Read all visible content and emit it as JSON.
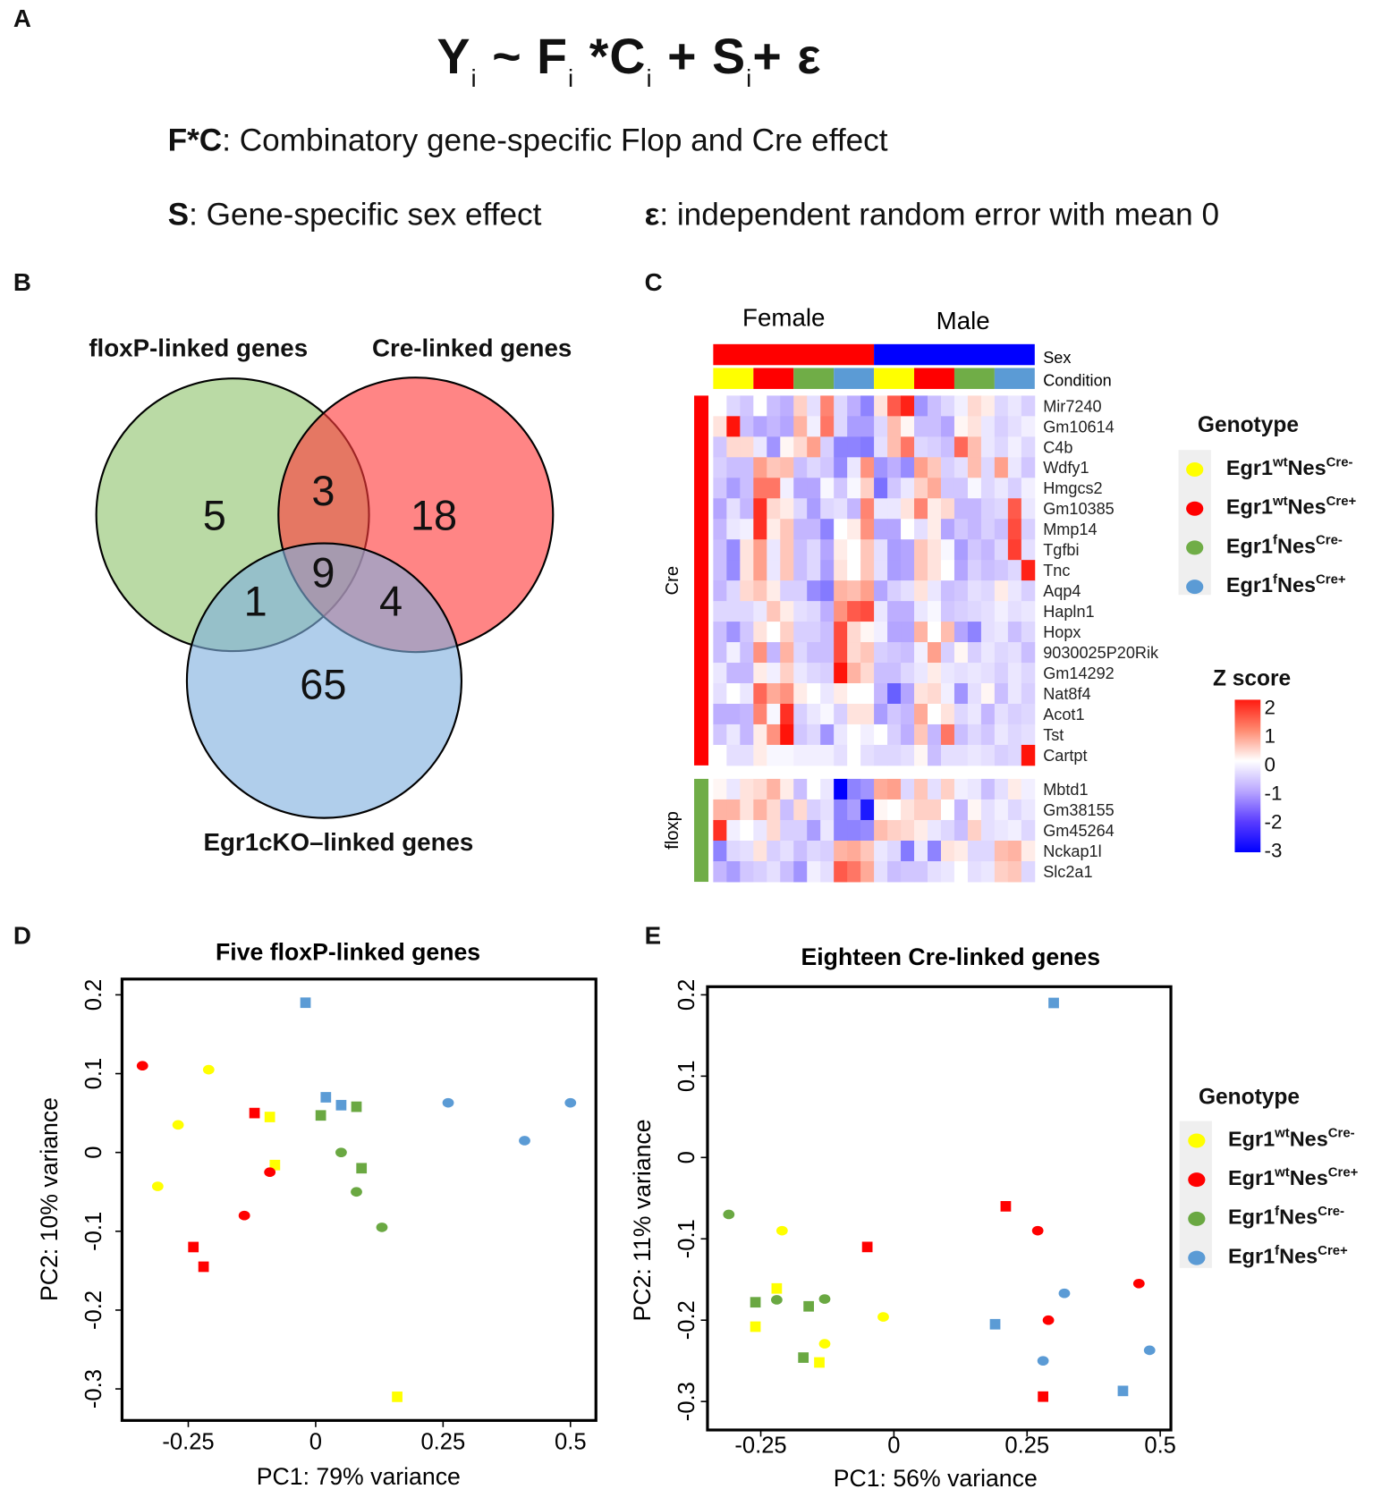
{
  "panel_labels": {
    "a": "A",
    "b": "B",
    "c": "C",
    "d": "D",
    "e": "E"
  },
  "panel_a": {
    "equation_parts": [
      {
        "text": "Y",
        "sub": "i"
      },
      {
        "text": " ~ F",
        "sub": "i"
      },
      {
        "text": " *C",
        "sub": "i"
      },
      {
        "text": " + S",
        "sub": "i"
      },
      {
        "text": "+  ε",
        "sub": ""
      }
    ],
    "definitions": [
      {
        "term": "F*C",
        "text": ": Combinatory gene-specific Flop and Cre effect"
      },
      {
        "term": "S",
        "text": ": Gene-specific sex effect"
      },
      {
        "term": "ε",
        "text": ": independent random error with mean 0"
      }
    ]
  },
  "venn": {
    "sets": [
      {
        "name": "floxP-linked genes",
        "color": "#a9d08e"
      },
      {
        "name": "Cre-linked genes",
        "color": "#ff6f6f"
      },
      {
        "name": "Egr1cKO–linked genes",
        "color": "#9dc3e6"
      }
    ],
    "regions": {
      "floxP_only": "5",
      "cre_only": "18",
      "egr1cko_only": "65",
      "floxP_cre": "3",
      "floxP_egr1cko": "1",
      "cre_egr1cko": "4",
      "all_three": "9"
    }
  },
  "heatmap": {
    "sex_labels": {
      "female": "Female",
      "male": "Male"
    },
    "annotation_rows": {
      "sex": "Sex",
      "condition": "Condition"
    },
    "sex_colors": {
      "female": "#ff0000",
      "male": "#0000ff"
    },
    "condition_colors": [
      "#ffff00",
      "#ff0000",
      "#70ad47",
      "#5b9bd5"
    ],
    "groups": [
      {
        "label": "Cre",
        "color": "#ff0000",
        "genes": [
          "Mir7240",
          "Gm10614",
          "C4b",
          "Wdfy1",
          "Hmgcs2",
          "Gm10385",
          "Mmp14",
          "Tgfbi",
          "Tnc",
          "Aqp4",
          "Hapln1",
          "Hopx",
          "9030025P20Rik",
          "Gm14292",
          "Nat8f4",
          "Acot1",
          "Tst",
          "Cartpt"
        ]
      },
      {
        "label": "floxp",
        "color": "#70ad47",
        "genes": [
          "Mbtd1",
          "Gm38155",
          "Gm45264",
          "Nckap1l",
          "Slc2a1"
        ]
      }
    ],
    "genotype_legend": {
      "title": "Genotype",
      "items": [
        {
          "gene": "Egr1",
          "allele": "wt",
          "driver": "Nes",
          "cre": "Cre-",
          "color": "#ffff00"
        },
        {
          "gene": "Egr1",
          "allele": "wt",
          "driver": "Nes",
          "cre": "Cre+",
          "color": "#ff0000"
        },
        {
          "gene": "Egr1",
          "allele": "f",
          "driver": "Nes",
          "cre": "Cre-",
          "color": "#70ad47"
        },
        {
          "gene": "Egr1",
          "allele": "f",
          "driver": "Nes",
          "cre": "Cre+",
          "color": "#5b9bd5"
        }
      ]
    },
    "zscore_legend": {
      "title": "Z score",
      "ticks": [
        "2",
        "1",
        "0",
        "-1",
        "-2",
        "-3"
      ],
      "range": [
        -3,
        2
      ]
    },
    "values": [
      [
        0,
        -0.5,
        -0.7,
        0,
        -0.8,
        -1,
        0.5,
        -0.4,
        1.2,
        -0.5,
        -1,
        -1.5,
        0.3,
        1.5,
        1.9,
        -1.3,
        -0.8,
        -0.5,
        -0.2,
        0.4,
        0.2,
        -0.5,
        -0.3,
        -0.6
      ],
      [
        0.3,
        2.5,
        -0.8,
        -1.1,
        -0.9,
        -1.1,
        0.8,
        -0.2,
        1.3,
        -0.5,
        -1.2,
        -1.2,
        -0.5,
        0.7,
        0.1,
        -0.8,
        -0.8,
        -1.1,
        0.1,
        0.3,
        -0.3,
        -0.6,
        -0.4,
        -0.2
      ],
      [
        -0.7,
        0.4,
        0.4,
        -0.3,
        -1.3,
        0.1,
        0.4,
        1,
        -0.6,
        -1.5,
        -1.5,
        -1.6,
        -0.4,
        0.7,
        1.3,
        -0.5,
        -0.6,
        -0.8,
        1.4,
        0.7,
        -0.3,
        -0.5,
        -0.2,
        -0.5
      ],
      [
        -0.6,
        -0.8,
        -0.8,
        1,
        0.6,
        0.7,
        -0.8,
        -0.5,
        -0.7,
        -1.4,
        -0.3,
        1.1,
        -1.3,
        -1,
        -1.4,
        1,
        0.6,
        -0.6,
        -0.4,
        0.7,
        -0.5,
        1,
        -0.3,
        -0.7
      ],
      [
        -0.7,
        -1.2,
        -0.8,
        1.3,
        1.3,
        -0.2,
        -1.1,
        -1.1,
        -0.1,
        -0.7,
        -0.1,
        0.5,
        -1.7,
        -0.7,
        -0.3,
        0.5,
        0.9,
        -0.7,
        -0.7,
        -0.1,
        -0.5,
        -0.3,
        -0.6,
        -0.2
      ],
      [
        -1.1,
        -0.4,
        -0.9,
        1.8,
        0.4,
        0.2,
        -0.5,
        -1.2,
        -0.5,
        -0.4,
        -0.9,
        1.2,
        -0.3,
        -0.3,
        0.3,
        1.2,
        0.2,
        0.4,
        -0.9,
        -0.9,
        -0.6,
        -0.5,
        1.5,
        -0.3
      ],
      [
        -0.9,
        -0.3,
        -0.2,
        1.8,
        0.2,
        0.6,
        -0.9,
        -0.9,
        -1.5,
        0,
        0.2,
        1.1,
        -1.1,
        -1.1,
        0,
        -0.4,
        0.2,
        -1.1,
        -0.7,
        -0.9,
        -0.6,
        -0.8,
        1.6,
        -0.6
      ],
      [
        -0.8,
        -1.4,
        0.3,
        1,
        -0.3,
        0.6,
        -0.8,
        -0.5,
        -1.1,
        0.2,
        0,
        0.6,
        -0.4,
        -1.2,
        -1.1,
        0.6,
        0.3,
        -0.1,
        -1.2,
        -0.7,
        -0.9,
        -0.5,
        1.7,
        -0.4
      ],
      [
        -0.8,
        -1.4,
        0.3,
        1,
        -0.3,
        0.6,
        -0.8,
        -0.5,
        -1.2,
        0.3,
        0,
        0.6,
        -0.4,
        -1.2,
        -1.1,
        0.6,
        0.3,
        0,
        -1.1,
        -0.6,
        -0.8,
        -0.7,
        -0.5,
        1.9
      ],
      [
        -0.9,
        -0.5,
        0.4,
        0.6,
        0.2,
        -0.6,
        -0.6,
        -1.4,
        -1.6,
        0.8,
        0.7,
        1,
        -1.1,
        -0.6,
        -0.4,
        0.3,
        -0.3,
        -0.8,
        -0.7,
        -0.4,
        -0.5,
        0.2,
        -0.3,
        -0.6
      ],
      [
        -0.5,
        -0.5,
        -0.5,
        -0.3,
        0.6,
        0.2,
        -0.4,
        -0.5,
        -1,
        1.1,
        1.5,
        1.6,
        -0.3,
        -1,
        -1,
        -0.3,
        -0.1,
        -0.7,
        -0.6,
        -0.5,
        -0.4,
        -0.2,
        -0.4,
        -0.3
      ],
      [
        -0.8,
        -1.3,
        -0.7,
        0.3,
        0,
        0.5,
        -0.6,
        -0.6,
        -0.8,
        1.6,
        0.4,
        0.1,
        -0.2,
        -1.1,
        -1.1,
        0.8,
        0,
        0.7,
        -1.1,
        -1.5,
        -0.4,
        -0.3,
        -0.8,
        -0.5
      ],
      [
        -0.8,
        -0.2,
        -0.8,
        1.1,
        -0.9,
        0.8,
        -0.5,
        -0.8,
        -0.8,
        1.6,
        0.4,
        0.6,
        -0.6,
        -0.7,
        -0.8,
        -0.2,
        1,
        -0.6,
        0.1,
        -0.6,
        -0.3,
        -0.5,
        -0.4,
        -0.8
      ],
      [
        -0.3,
        -0.9,
        -0.9,
        0.2,
        -0.2,
        0.5,
        -0.3,
        -0.5,
        -0.6,
        2.2,
        0.8,
        0.4,
        -0.8,
        -0.8,
        -0.5,
        -0.3,
        0.2,
        -0.3,
        -0.4,
        -0.3,
        -0.4,
        -0.6,
        -0.3,
        -0.5
      ],
      [
        -0.4,
        0,
        -0.3,
        1.4,
        0.9,
        1.1,
        0.2,
        0,
        -0.3,
        0.2,
        0,
        0,
        -0.9,
        -1.9,
        -1.1,
        0.3,
        0.4,
        -0.2,
        -1.3,
        -0.4,
        0.1,
        -0.8,
        -0.3,
        -0.6
      ],
      [
        -1,
        -1,
        -0.9,
        1.2,
        -0.1,
        1.8,
        -0.6,
        -0.3,
        -0.1,
        -0.6,
        0.3,
        0.3,
        -1.2,
        -0.7,
        -0.9,
        0.9,
        0,
        0.3,
        -0.5,
        -0.3,
        -0.9,
        -0.4,
        -0.6,
        -0.5
      ],
      [
        -0.7,
        -0.3,
        -0.9,
        0.2,
        1.1,
        2,
        -0.7,
        -0.5,
        -1.3,
        -0.3,
        0,
        -0.2,
        0,
        -0.6,
        -1,
        0.6,
        -0.9,
        1.3,
        -0.8,
        -0.5,
        -0.7,
        -0.3,
        -0.5,
        -0.4
      ],
      [
        0,
        -0.4,
        -0.4,
        0.2,
        -0.1,
        -0.1,
        -0.2,
        -0.2,
        -0.2,
        -0.4,
        0,
        -0.4,
        -0.5,
        -0.5,
        -0.4,
        0.1,
        -0.8,
        -0.4,
        -0.4,
        -0.3,
        -0.4,
        -0.6,
        -0.5,
        2.3
      ],
      [
        0.1,
        -0.3,
        0.3,
        0.4,
        0.8,
        0.2,
        -0.8,
        0,
        -0.3,
        -3,
        -1.5,
        -1.3,
        0.9,
        1,
        -0.5,
        0.6,
        -0.4,
        0.5,
        -0.2,
        -0.3,
        -0.8,
        -0.4,
        0.2,
        -0.2
      ],
      [
        0.8,
        0.8,
        0.3,
        0.8,
        0.4,
        -0.8,
        0.4,
        -0.6,
        -0.4,
        -1.5,
        -1.2,
        -2.7,
        0.1,
        0,
        0.3,
        0.5,
        0.5,
        0,
        -0.9,
        0.1,
        -0.4,
        -0.2,
        -0.5,
        -0.3
      ],
      [
        1.8,
        -0.2,
        0,
        -0.3,
        0.4,
        -0.6,
        -0.6,
        -1.2,
        -0.3,
        -1.5,
        -1.5,
        -1.4,
        0.7,
        0.5,
        0.4,
        0.2,
        -0.3,
        -0.5,
        -0.8,
        0.5,
        -0.4,
        -0.3,
        -0.2,
        -0.5
      ],
      [
        -1.5,
        -0.5,
        -0.4,
        0.3,
        -0.6,
        -0.4,
        -0.8,
        -0.5,
        -0.6,
        0.8,
        0.9,
        0.6,
        -0.3,
        -0.5,
        -1.6,
        -0.3,
        -1.5,
        0.3,
        0.2,
        -0.5,
        -0.5,
        0.7,
        0.8,
        0.2
      ],
      [
        -0.9,
        -1.2,
        -0.7,
        -0.6,
        -0.4,
        -0.8,
        -1.3,
        -0.2,
        -0.4,
        1.5,
        1.3,
        0.9,
        -0.4,
        -0.8,
        -0.7,
        -0.7,
        -0.4,
        -0.3,
        0,
        -0.4,
        -0.3,
        0.5,
        0.6,
        -0.5
      ]
    ]
  },
  "chart_data": [
    {
      "type": "scatter",
      "title": "Five floxP-linked genes",
      "xlabel": "PC1:  79% variance",
      "ylabel": "PC2:  10% variance",
      "xlim": [
        -0.38,
        0.55
      ],
      "ylim": [
        -0.34,
        0.22
      ],
      "x_ticks": [
        -0.25,
        0,
        0.25,
        0.5
      ],
      "x_tick_labels": [
        "-0.25",
        "0",
        "0.25",
        "0.5"
      ],
      "y_ticks": [
        0.2,
        0.1,
        0,
        -0.1,
        -0.2,
        -0.3
      ],
      "y_tick_labels": [
        "0.2",
        "0.1",
        "0",
        "-0.1",
        "-0.2",
        "-0.3"
      ],
      "grid": false,
      "colors": {
        "Egr1wtNesCre-": "#ffff00",
        "Egr1wtNesCre+": "#ff0000",
        "Egr1fNesCre-": "#6aa842",
        "Egr1fNesCre+": "#5b9bd5"
      },
      "points": [
        {
          "g": "Egr1fNesCre+",
          "shape": "square",
          "x": -0.02,
          "y": 0.19
        },
        {
          "g": "Egr1wtNesCre+",
          "shape": "circle",
          "x": -0.34,
          "y": 0.11
        },
        {
          "g": "Egr1wtNesCre-",
          "shape": "circle",
          "x": -0.21,
          "y": 0.105
        },
        {
          "g": "Egr1fNesCre+",
          "shape": "square",
          "x": 0.02,
          "y": 0.07
        },
        {
          "g": "Egr1fNesCre+",
          "shape": "square",
          "x": 0.05,
          "y": 0.06
        },
        {
          "g": "Egr1fNesCre-",
          "shape": "square",
          "x": 0.08,
          "y": 0.058
        },
        {
          "g": "Egr1wtNesCre+",
          "shape": "square",
          "x": -0.12,
          "y": 0.05
        },
        {
          "g": "Egr1wtNesCre-",
          "shape": "square",
          "x": -0.09,
          "y": 0.045
        },
        {
          "g": "Egr1fNesCre-",
          "shape": "square",
          "x": 0.01,
          "y": 0.047
        },
        {
          "g": "Egr1fNesCre+",
          "shape": "circle",
          "x": 0.26,
          "y": 0.063
        },
        {
          "g": "Egr1fNesCre+",
          "shape": "circle",
          "x": 0.5,
          "y": 0.063
        },
        {
          "g": "Egr1fNesCre+",
          "shape": "circle",
          "x": 0.41,
          "y": 0.015
        },
        {
          "g": "Egr1wtNesCre-",
          "shape": "circle",
          "x": -0.27,
          "y": 0.035
        },
        {
          "g": "Egr1fNesCre-",
          "shape": "circle",
          "x": 0.05,
          "y": 0.0
        },
        {
          "g": "Egr1wtNesCre-",
          "shape": "square",
          "x": -0.08,
          "y": -0.016
        },
        {
          "g": "Egr1fNesCre-",
          "shape": "square",
          "x": 0.09,
          "y": -0.02
        },
        {
          "g": "Egr1wtNesCre+",
          "shape": "circle",
          "x": -0.09,
          "y": -0.025
        },
        {
          "g": "Egr1fNesCre-",
          "shape": "circle",
          "x": 0.08,
          "y": -0.05
        },
        {
          "g": "Egr1wtNesCre-",
          "shape": "circle",
          "x": -0.31,
          "y": -0.043
        },
        {
          "g": "Egr1wtNesCre+",
          "shape": "circle",
          "x": -0.14,
          "y": -0.08
        },
        {
          "g": "Egr1fNesCre-",
          "shape": "circle",
          "x": 0.13,
          "y": -0.095
        },
        {
          "g": "Egr1wtNesCre+",
          "shape": "square",
          "x": -0.24,
          "y": -0.12
        },
        {
          "g": "Egr1wtNesCre+",
          "shape": "square",
          "x": -0.22,
          "y": -0.145
        },
        {
          "g": "Egr1wtNesCre-",
          "shape": "square",
          "x": 0.16,
          "y": -0.31
        }
      ]
    },
    {
      "type": "scatter",
      "title": "Eighteen Cre-linked genes",
      "xlabel": "PC1:  56% variance",
      "ylabel": "PC2:  11% variance",
      "xlim": [
        -0.35,
        0.52
      ],
      "ylim": [
        -0.335,
        0.21
      ],
      "x_ticks": [
        -0.25,
        0,
        0.25,
        0.5
      ],
      "x_tick_labels": [
        "-0.25",
        "0",
        "0.25",
        "0.5"
      ],
      "y_ticks": [
        0.2,
        0.1,
        0,
        -0.1,
        -0.2,
        -0.3
      ],
      "y_tick_labels": [
        "0.2",
        "0.1",
        "0",
        "-0.1",
        "-0.2",
        "-0.3"
      ],
      "grid": false,
      "legend": {
        "title": "Genotype",
        "placement": "right",
        "items": [
          {
            "gene": "Egr1",
            "allele": "wt",
            "driver": "Nes",
            "cre": "Cre-",
            "color": "#ffff00"
          },
          {
            "gene": "Egr1",
            "allele": "wt",
            "driver": "Nes",
            "cre": "Cre+",
            "color": "#ff0000"
          },
          {
            "gene": "Egr1",
            "allele": "f",
            "driver": "Nes",
            "cre": "Cre-",
            "color": "#6aa842"
          },
          {
            "gene": "Egr1",
            "allele": "f",
            "driver": "Nes",
            "cre": "Cre+",
            "color": "#5b9bd5"
          }
        ]
      },
      "colors": {
        "Egr1wtNesCre-": "#ffff00",
        "Egr1wtNesCre+": "#ff0000",
        "Egr1fNesCre-": "#6aa842",
        "Egr1fNesCre+": "#5b9bd5"
      },
      "points": [
        {
          "g": "Egr1fNesCre+",
          "shape": "square",
          "x": 0.3,
          "y": 0.19
        },
        {
          "g": "Egr1wtNesCre+",
          "shape": "square",
          "x": 0.21,
          "y": -0.06
        },
        {
          "g": "Egr1wtNesCre+",
          "shape": "circle",
          "x": 0.27,
          "y": -0.09
        },
        {
          "g": "Egr1fNesCre-",
          "shape": "circle",
          "x": -0.31,
          "y": -0.07
        },
        {
          "g": "Egr1wtNesCre-",
          "shape": "circle",
          "x": -0.21,
          "y": -0.09
        },
        {
          "g": "Egr1wtNesCre+",
          "shape": "square",
          "x": -0.05,
          "y": -0.11
        },
        {
          "g": "Egr1fNesCre+",
          "shape": "circle",
          "x": 0.32,
          "y": -0.167
        },
        {
          "g": "Egr1wtNesCre+",
          "shape": "circle",
          "x": 0.46,
          "y": -0.155
        },
        {
          "g": "Egr1wtNesCre-",
          "shape": "square",
          "x": -0.22,
          "y": -0.161
        },
        {
          "g": "Egr1fNesCre-",
          "shape": "square",
          "x": -0.26,
          "y": -0.178
        },
        {
          "g": "Egr1fNesCre-",
          "shape": "circle",
          "x": -0.22,
          "y": -0.175
        },
        {
          "g": "Egr1fNesCre-",
          "shape": "square",
          "x": -0.16,
          "y": -0.183
        },
        {
          "g": "Egr1fNesCre-",
          "shape": "circle",
          "x": -0.13,
          "y": -0.174
        },
        {
          "g": "Egr1wtNesCre-",
          "shape": "square",
          "x": -0.26,
          "y": -0.208
        },
        {
          "g": "Egr1wtNesCre-",
          "shape": "circle",
          "x": -0.02,
          "y": -0.196
        },
        {
          "g": "Egr1fNesCre+",
          "shape": "square",
          "x": 0.19,
          "y": -0.205
        },
        {
          "g": "Egr1wtNesCre+",
          "shape": "circle",
          "x": 0.29,
          "y": -0.2
        },
        {
          "g": "Egr1wtNesCre-",
          "shape": "circle",
          "x": -0.13,
          "y": -0.229
        },
        {
          "g": "Egr1fNesCre-",
          "shape": "square",
          "x": -0.17,
          "y": -0.246
        },
        {
          "g": "Egr1wtNesCre-",
          "shape": "square",
          "x": -0.14,
          "y": -0.252
        },
        {
          "g": "Egr1fNesCre+",
          "shape": "circle",
          "x": 0.28,
          "y": -0.25
        },
        {
          "g": "Egr1fNesCre+",
          "shape": "circle",
          "x": 0.48,
          "y": -0.237
        },
        {
          "g": "Egr1fNesCre+",
          "shape": "square",
          "x": 0.43,
          "y": -0.287
        },
        {
          "g": "Egr1wtNesCre+",
          "shape": "square",
          "x": 0.28,
          "y": -0.294
        }
      ]
    }
  ]
}
